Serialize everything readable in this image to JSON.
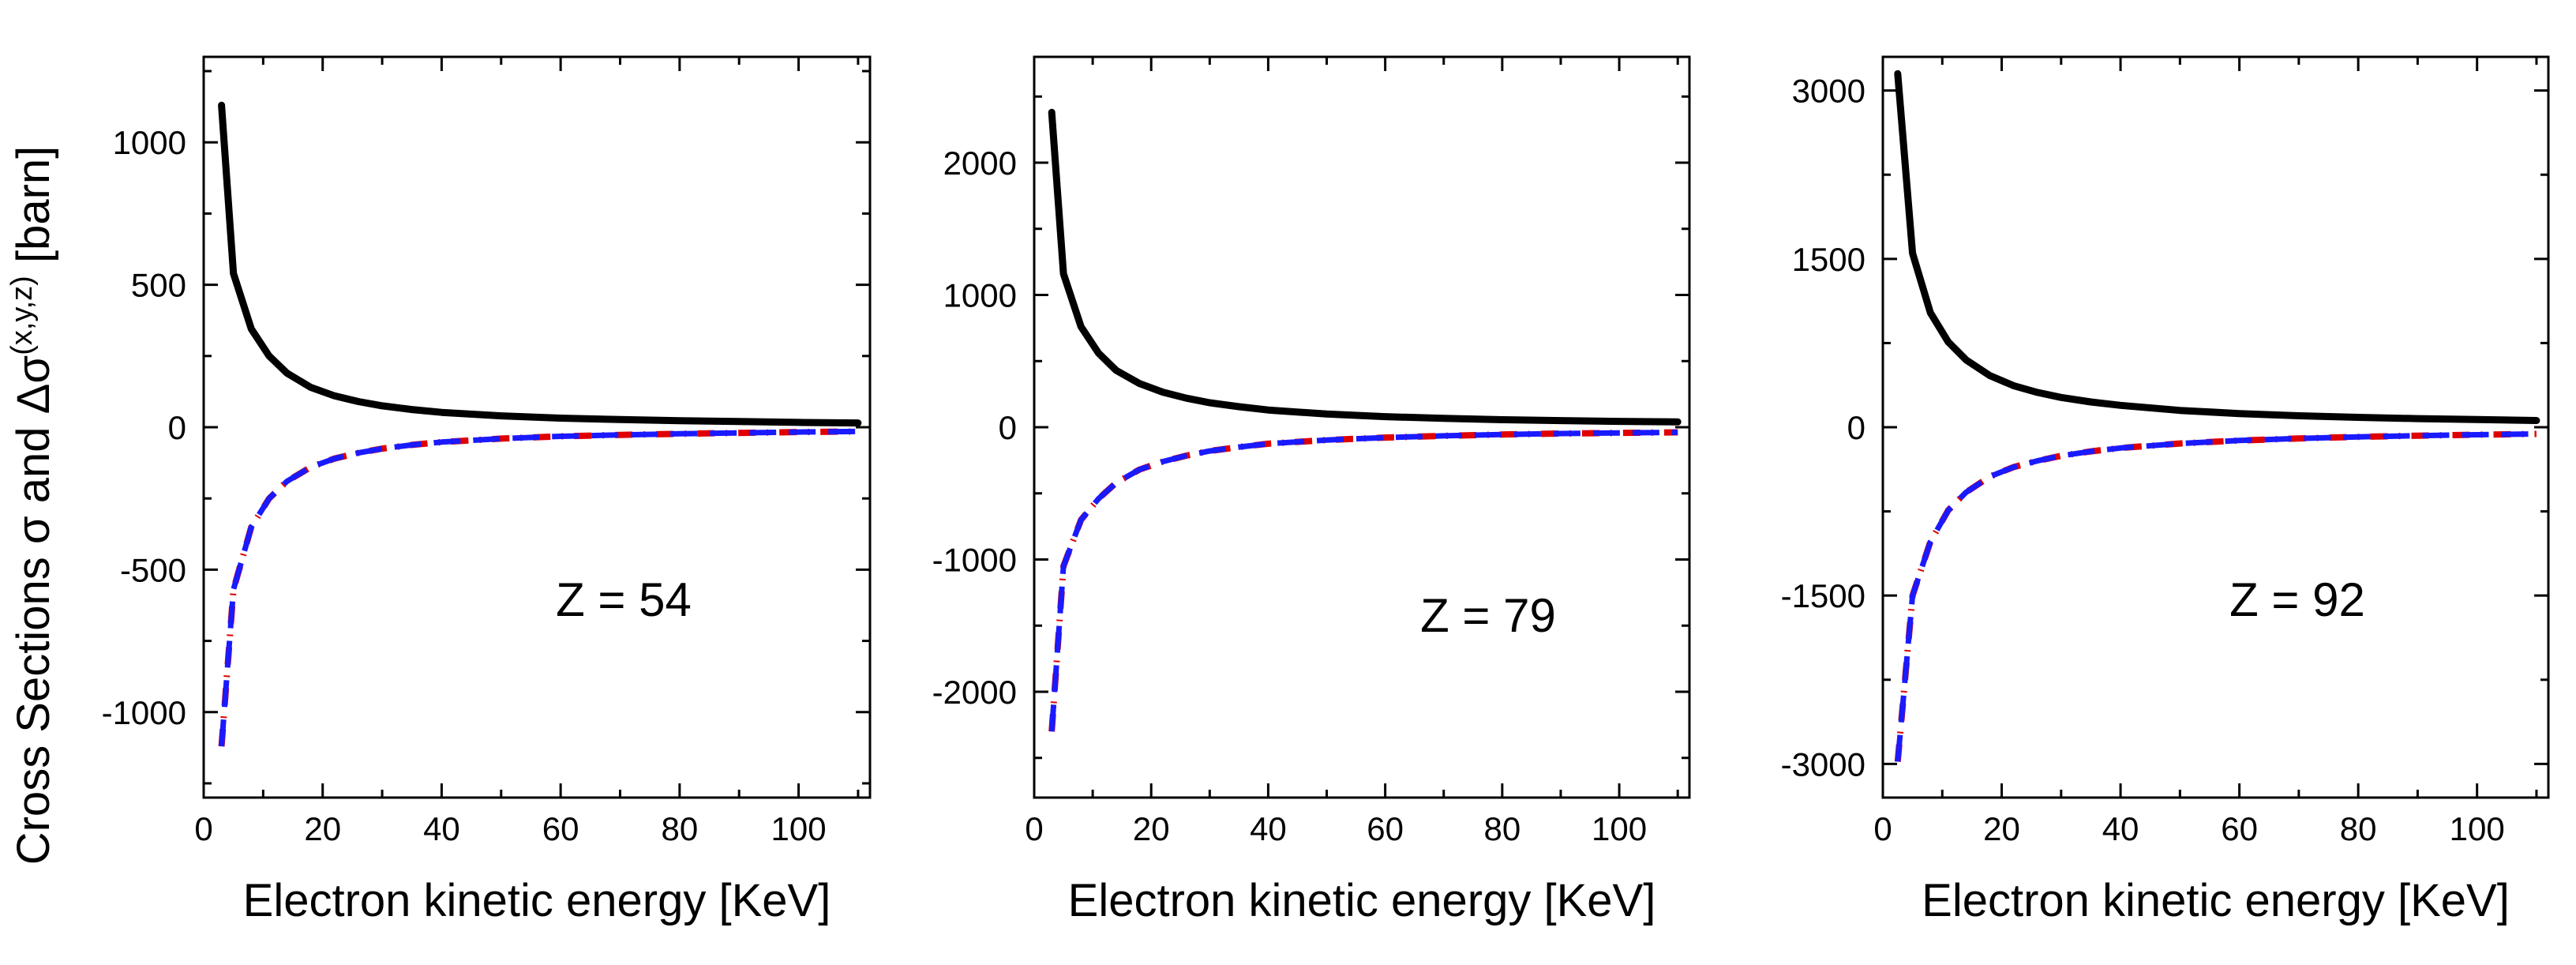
{
  "figure": {
    "ylabel_main": "Cross Sections σ and Δσ",
    "ylabel_sup": "(x,y,z)",
    "ylabel_unit": " [barn]"
  },
  "chart_data": [
    {
      "type": "line",
      "annotation": "Z = 54",
      "xlabel": "Electron kinetic energy [KeV]",
      "xlim": [
        0,
        112
      ],
      "ylim": [
        -1300,
        1300
      ],
      "xticks": [
        0,
        20,
        40,
        60,
        80,
        100
      ],
      "xtick_labels": [
        "0",
        "20",
        "40",
        "60",
        "80",
        "100"
      ],
      "yticks": [
        -1000,
        -500,
        0,
        500,
        1000
      ],
      "ytick_labels": [
        "-1000",
        "-500",
        "0",
        "500",
        "1000"
      ],
      "series": [
        {
          "name": "sigma",
          "color": "#000000",
          "style": "solid",
          "x": [
            3,
            5,
            8,
            11,
            14,
            18,
            22,
            26,
            30,
            35,
            40,
            50,
            60,
            70,
            80,
            90,
            100,
            110
          ],
          "y": [
            1130,
            540,
            345,
            250,
            190,
            140,
            110,
            90,
            75,
            62,
            52,
            40,
            32,
            27,
            23,
            20,
            17,
            15
          ]
        },
        {
          "name": "delta-sigma-x",
          "color": "#e00000",
          "style": "dashdot",
          "x": [
            3,
            5,
            8,
            11,
            14,
            18,
            22,
            26,
            30,
            35,
            40,
            50,
            60,
            70,
            80,
            90,
            100,
            110
          ],
          "y": [
            -1120,
            -570,
            -350,
            -250,
            -190,
            -140,
            -110,
            -90,
            -75,
            -62,
            -52,
            -40,
            -32,
            -27,
            -23,
            -20,
            -17,
            -15
          ]
        },
        {
          "name": "delta-sigma-y",
          "color": "#1a1aff",
          "style": "dashed",
          "x": [
            3,
            5,
            8,
            11,
            14,
            18,
            22,
            26,
            30,
            35,
            40,
            50,
            60,
            70,
            80,
            90,
            100,
            110
          ],
          "y": [
            -1120,
            -570,
            -350,
            -250,
            -190,
            -140,
            -110,
            -90,
            -75,
            -62,
            -52,
            -40,
            -32,
            -27,
            -23,
            -20,
            -17,
            -15
          ]
        }
      ]
    },
    {
      "type": "line",
      "annotation": "Z = 79",
      "xlabel": "Electron kinetic energy [KeV]",
      "xlim": [
        0,
        112
      ],
      "ylim": [
        -2800,
        2800
      ],
      "xticks": [
        0,
        20,
        40,
        60,
        80,
        100
      ],
      "xtick_labels": [
        "0",
        "20",
        "40",
        "60",
        "80",
        "100"
      ],
      "yticks": [
        -2000,
        -1000,
        0,
        1000,
        2000
      ],
      "ytick_labels": [
        "-2000",
        "-1000",
        "0",
        "1000",
        "2000"
      ],
      "series": [
        {
          "name": "sigma",
          "color": "#000000",
          "style": "solid",
          "x": [
            3,
            5,
            8,
            11,
            14,
            18,
            22,
            26,
            30,
            35,
            40,
            50,
            60,
            70,
            80,
            90,
            100,
            110
          ],
          "y": [
            2380,
            1160,
            760,
            560,
            430,
            330,
            265,
            220,
            185,
            155,
            130,
            100,
            80,
            67,
            57,
            50,
            44,
            40
          ]
        },
        {
          "name": "delta-sigma-x",
          "color": "#e00000",
          "style": "dashdot",
          "x": [
            3,
            5,
            8,
            11,
            14,
            18,
            22,
            26,
            30,
            35,
            40,
            50,
            60,
            70,
            80,
            90,
            100,
            110
          ],
          "y": [
            -2300,
            -1050,
            -700,
            -540,
            -420,
            -320,
            -260,
            -215,
            -180,
            -150,
            -125,
            -97,
            -78,
            -65,
            -55,
            -48,
            -43,
            -39
          ]
        },
        {
          "name": "delta-sigma-y",
          "color": "#1a1aff",
          "style": "dashed",
          "x": [
            3,
            5,
            8,
            11,
            14,
            18,
            22,
            26,
            30,
            35,
            40,
            50,
            60,
            70,
            80,
            90,
            100,
            110
          ],
          "y": [
            -2300,
            -1050,
            -700,
            -540,
            -420,
            -320,
            -260,
            -215,
            -180,
            -150,
            -125,
            -97,
            -78,
            -65,
            -55,
            -48,
            -43,
            -39
          ]
        }
      ]
    },
    {
      "type": "line",
      "annotation": "Z = 92",
      "xlabel": "Electron kinetic energy [KeV]",
      "xlim": [
        0,
        112
      ],
      "ylim": [
        -3300,
        3300
      ],
      "xticks": [
        0,
        20,
        40,
        60,
        80,
        100
      ],
      "xtick_labels": [
        "0",
        "20",
        "40",
        "60",
        "80",
        "100"
      ],
      "yticks": [
        -3000,
        -1500,
        0,
        1500,
        3000
      ],
      "ytick_labels": [
        "-3000",
        "-1500",
        "0",
        "1500",
        "3000"
      ],
      "series": [
        {
          "name": "sigma",
          "color": "#000000",
          "style": "solid",
          "x": [
            2.5,
            5,
            8,
            11,
            14,
            18,
            22,
            26,
            30,
            35,
            40,
            50,
            60,
            70,
            80,
            90,
            100,
            110
          ],
          "y": [
            3150,
            1550,
            1020,
            760,
            600,
            460,
            370,
            310,
            265,
            225,
            195,
            150,
            122,
            102,
            88,
            77,
            68,
            60
          ]
        },
        {
          "name": "delta-sigma-x",
          "color": "#e00000",
          "style": "dashdot",
          "x": [
            2.5,
            5,
            8,
            11,
            14,
            18,
            22,
            26,
            30,
            35,
            40,
            50,
            60,
            70,
            80,
            90,
            100,
            110
          ],
          "y": [
            -2980,
            -1500,
            -1020,
            -740,
            -580,
            -440,
            -355,
            -300,
            -255,
            -215,
            -185,
            -145,
            -118,
            -100,
            -86,
            -75,
            -67,
            -60
          ]
        },
        {
          "name": "delta-sigma-y",
          "color": "#1a1aff",
          "style": "dashed",
          "x": [
            2.5,
            5,
            8,
            11,
            14,
            18,
            22,
            26,
            30,
            35,
            40,
            50,
            60,
            70,
            80,
            90,
            100,
            110
          ],
          "y": [
            -2980,
            -1500,
            -1020,
            -740,
            -580,
            -440,
            -355,
            -300,
            -255,
            -215,
            -185,
            -145,
            -118,
            -100,
            -86,
            -75,
            -67,
            -60
          ]
        }
      ]
    }
  ]
}
